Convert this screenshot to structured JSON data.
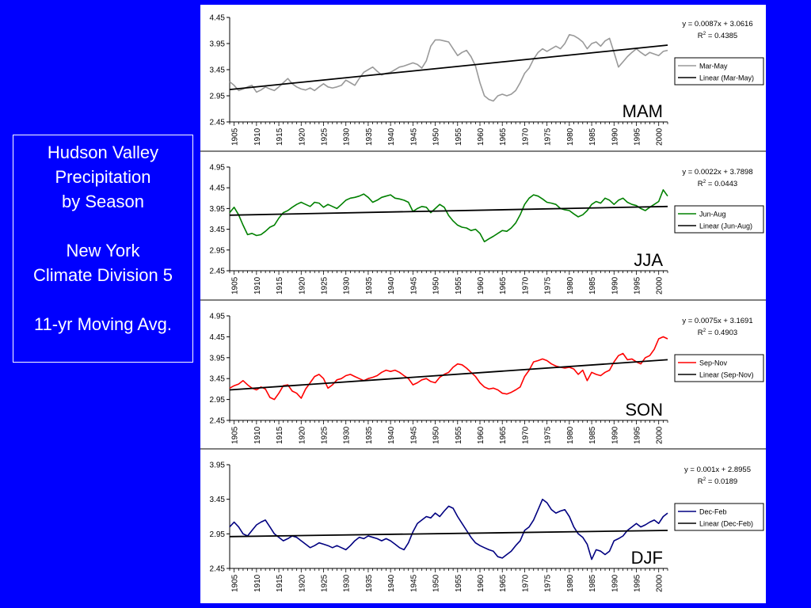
{
  "slide": {
    "title_lines": [
      "Hudson Valley",
      "Precipitation",
      "by Season",
      "",
      "New York",
      "Climate Division 5",
      "",
      "11-yr Moving Avg."
    ]
  },
  "chart_data": [
    {
      "type": "line",
      "panel_label": "MAM",
      "equation": "y = 0.0087x + 3.0616",
      "r2": "R2 = 0.4385",
      "r2_value": "0.4385",
      "ylim": [
        2.45,
        4.45
      ],
      "yticks": [
        "2.45",
        "2.95",
        "3.45",
        "3.95",
        "4.45"
      ],
      "xlim": [
        1904,
        2002
      ],
      "xticks": [
        "1905",
        "1910",
        "1915",
        "1920",
        "1925",
        "1930",
        "1935",
        "1940",
        "1945",
        "1950",
        "1955",
        "1960",
        "1965",
        "1970",
        "1975",
        "1980",
        "1985",
        "1990",
        "1995",
        "2000"
      ],
      "series": [
        {
          "name": "Mar-May",
          "color": "#999999",
          "x": [
            1904,
            1905,
            1906,
            1907,
            1908,
            1909,
            1910,
            1911,
            1912,
            1913,
            1914,
            1915,
            1916,
            1917,
            1918,
            1919,
            1920,
            1921,
            1922,
            1923,
            1924,
            1925,
            1926,
            1927,
            1928,
            1929,
            1930,
            1931,
            1932,
            1933,
            1934,
            1935,
            1936,
            1937,
            1938,
            1939,
            1940,
            1941,
            1942,
            1943,
            1944,
            1945,
            1946,
            1947,
            1948,
            1949,
            1950,
            1951,
            1952,
            1953,
            1954,
            1955,
            1956,
            1957,
            1958,
            1959,
            1960,
            1961,
            1962,
            1963,
            1964,
            1965,
            1966,
            1967,
            1968,
            1969,
            1970,
            1971,
            1972,
            1973,
            1974,
            1975,
            1976,
            1977,
            1978,
            1979,
            1980,
            1981,
            1982,
            1983,
            1984,
            1985,
            1986,
            1987,
            1988,
            1989,
            1990,
            1991,
            1992,
            1993,
            1994,
            1995,
            1996,
            1997,
            1998,
            1999,
            2000,
            2001,
            2002
          ],
          "values": [
            3.22,
            3.15,
            3.05,
            3.08,
            3.12,
            3.15,
            3.02,
            3.06,
            3.12,
            3.08,
            3.05,
            3.12,
            3.2,
            3.28,
            3.18,
            3.12,
            3.08,
            3.06,
            3.1,
            3.05,
            3.12,
            3.18,
            3.12,
            3.1,
            3.12,
            3.15,
            3.25,
            3.2,
            3.15,
            3.28,
            3.4,
            3.45,
            3.5,
            3.42,
            3.35,
            3.38,
            3.4,
            3.45,
            3.5,
            3.52,
            3.55,
            3.58,
            3.55,
            3.48,
            3.62,
            3.9,
            4.02,
            4.02,
            4.0,
            3.98,
            3.85,
            3.72,
            3.78,
            3.82,
            3.7,
            3.52,
            3.2,
            2.95,
            2.88,
            2.85,
            2.95,
            2.98,
            2.95,
            2.98,
            3.05,
            3.2,
            3.38,
            3.48,
            3.65,
            3.78,
            3.85,
            3.8,
            3.85,
            3.9,
            3.85,
            3.95,
            4.12,
            4.1,
            4.05,
            3.98,
            3.85,
            3.95,
            3.98,
            3.9,
            4.0,
            4.05,
            3.78,
            3.5,
            3.6,
            3.7,
            3.78,
            3.85,
            3.78,
            3.72,
            3.78,
            3.75,
            3.72,
            3.8,
            3.82
          ]
        },
        {
          "name": "Linear (Mar-May)",
          "color": "#000000",
          "x": [
            1904,
            2002
          ],
          "values": [
            3.07,
            3.92
          ]
        }
      ]
    },
    {
      "type": "line",
      "panel_label": "JJA",
      "equation": "y = 0.0022x + 3.7898",
      "r2": "R2 = 0.0443",
      "r2_value": "0.0443",
      "ylim": [
        2.45,
        4.95
      ],
      "yticks": [
        "2.45",
        "2.95",
        "3.45",
        "3.95",
        "4.45",
        "4.95"
      ],
      "xlim": [
        1904,
        2002
      ],
      "xticks": [
        "1905",
        "1910",
        "1915",
        "1920",
        "1925",
        "1930",
        "1935",
        "1940",
        "1945",
        "1950",
        "1955",
        "1960",
        "1965",
        "1970",
        "1975",
        "1980",
        "1985",
        "1990",
        "1995",
        "2000"
      ],
      "series": [
        {
          "name": "Jun-Aug",
          "color": "#008000",
          "x": [
            1904,
            1905,
            1906,
            1907,
            1908,
            1909,
            1910,
            1911,
            1912,
            1913,
            1914,
            1915,
            1916,
            1917,
            1918,
            1919,
            1920,
            1921,
            1922,
            1923,
            1924,
            1925,
            1926,
            1927,
            1928,
            1929,
            1930,
            1931,
            1932,
            1933,
            1934,
            1935,
            1936,
            1937,
            1938,
            1939,
            1940,
            1941,
            1942,
            1943,
            1944,
            1945,
            1946,
            1947,
            1948,
            1949,
            1950,
            1951,
            1952,
            1953,
            1954,
            1955,
            1956,
            1957,
            1958,
            1959,
            1960,
            1961,
            1962,
            1963,
            1964,
            1965,
            1966,
            1967,
            1968,
            1969,
            1970,
            1971,
            1972,
            1973,
            1974,
            1975,
            1976,
            1977,
            1978,
            1979,
            1980,
            1981,
            1982,
            1983,
            1984,
            1985,
            1986,
            1987,
            1988,
            1989,
            1990,
            1991,
            1992,
            1993,
            1994,
            1995,
            1996,
            1997,
            1998,
            1999,
            2000,
            2001,
            2002
          ],
          "values": [
            3.85,
            3.98,
            3.8,
            3.55,
            3.32,
            3.35,
            3.3,
            3.32,
            3.4,
            3.5,
            3.55,
            3.72,
            3.85,
            3.9,
            3.98,
            4.05,
            4.1,
            4.05,
            4.0,
            4.1,
            4.08,
            3.98,
            4.05,
            4.0,
            3.95,
            4.05,
            4.15,
            4.2,
            4.22,
            4.25,
            4.3,
            4.22,
            4.1,
            4.15,
            4.22,
            4.25,
            4.28,
            4.2,
            4.18,
            4.15,
            4.1,
            3.88,
            3.95,
            4.0,
            3.98,
            3.85,
            3.95,
            4.05,
            3.98,
            3.78,
            3.65,
            3.55,
            3.5,
            3.48,
            3.42,
            3.45,
            3.35,
            3.15,
            3.22,
            3.28,
            3.35,
            3.42,
            3.4,
            3.48,
            3.6,
            3.8,
            4.05,
            4.2,
            4.28,
            4.25,
            4.18,
            4.1,
            4.08,
            4.05,
            3.95,
            3.92,
            3.9,
            3.82,
            3.75,
            3.8,
            3.9,
            4.05,
            4.12,
            4.08,
            4.2,
            4.15,
            4.05,
            4.15,
            4.2,
            4.1,
            4.05,
            4.02,
            3.95,
            3.9,
            3.98,
            4.05,
            4.12,
            4.4,
            4.25
          ]
        },
        {
          "name": "Linear (Jun-Aug)",
          "color": "#000000",
          "x": [
            1904,
            2002
          ],
          "values": [
            3.79,
            4.0
          ]
        }
      ]
    },
    {
      "type": "line",
      "panel_label": "SON",
      "equation": "y = 0.0075x + 3.1691",
      "r2": "R2 = 0.4903",
      "r2_value": "0.4903",
      "ylim": [
        2.45,
        4.95
      ],
      "yticks": [
        "2.45",
        "2.95",
        "3.45",
        "3.95",
        "4.45",
        "4.95"
      ],
      "xlim": [
        1904,
        2002
      ],
      "xticks": [
        "1905",
        "1910",
        "1915",
        "1920",
        "1925",
        "1930",
        "1935",
        "1940",
        "1945",
        "1950",
        "1955",
        "1960",
        "1965",
        "1970",
        "1975",
        "1980",
        "1985",
        "1990",
        "1995",
        "2000"
      ],
      "series": [
        {
          "name": "Sep-Nov",
          "color": "#ff0000",
          "x": [
            1904,
            1905,
            1906,
            1907,
            1908,
            1909,
            1910,
            1911,
            1912,
            1913,
            1914,
            1915,
            1916,
            1917,
            1918,
            1919,
            1920,
            1921,
            1922,
            1923,
            1924,
            1925,
            1926,
            1927,
            1928,
            1929,
            1930,
            1931,
            1932,
            1933,
            1934,
            1935,
            1936,
            1937,
            1938,
            1939,
            1940,
            1941,
            1942,
            1943,
            1944,
            1945,
            1946,
            1947,
            1948,
            1949,
            1950,
            1951,
            1952,
            1953,
            1954,
            1955,
            1956,
            1957,
            1958,
            1959,
            1960,
            1961,
            1962,
            1963,
            1964,
            1965,
            1966,
            1967,
            1968,
            1969,
            1970,
            1971,
            1972,
            1973,
            1974,
            1975,
            1976,
            1977,
            1978,
            1979,
            1980,
            1981,
            1982,
            1983,
            1984,
            1985,
            1986,
            1987,
            1988,
            1989,
            1990,
            1991,
            1992,
            1993,
            1994,
            1995,
            1996,
            1997,
            1998,
            1999,
            2000,
            2001,
            2002
          ],
          "values": [
            3.22,
            3.28,
            3.32,
            3.4,
            3.3,
            3.22,
            3.18,
            3.25,
            3.2,
            3.0,
            2.95,
            3.1,
            3.28,
            3.3,
            3.15,
            3.1,
            2.98,
            3.2,
            3.35,
            3.5,
            3.55,
            3.45,
            3.22,
            3.3,
            3.42,
            3.45,
            3.52,
            3.55,
            3.5,
            3.45,
            3.4,
            3.45,
            3.48,
            3.52,
            3.6,
            3.65,
            3.62,
            3.65,
            3.6,
            3.52,
            3.45,
            3.3,
            3.35,
            3.42,
            3.45,
            3.38,
            3.35,
            3.48,
            3.55,
            3.6,
            3.72,
            3.8,
            3.78,
            3.7,
            3.6,
            3.5,
            3.35,
            3.25,
            3.2,
            3.22,
            3.18,
            3.1,
            3.08,
            3.12,
            3.18,
            3.25,
            3.5,
            3.65,
            3.85,
            3.88,
            3.92,
            3.88,
            3.8,
            3.75,
            3.72,
            3.7,
            3.72,
            3.68,
            3.55,
            3.65,
            3.4,
            3.6,
            3.55,
            3.52,
            3.6,
            3.65,
            3.85,
            4.0,
            4.05,
            3.9,
            3.92,
            3.85,
            3.8,
            3.95,
            4.0,
            4.15,
            4.4,
            4.45,
            4.4
          ]
        },
        {
          "name": "Linear (Sep-Nov)",
          "color": "#000000",
          "x": [
            1904,
            2002
          ],
          "values": [
            3.18,
            3.9
          ]
        }
      ]
    },
    {
      "type": "line",
      "panel_label": "DJF",
      "equation": "y = 0.001x + 2.8955",
      "r2": "R2 = 0.0189",
      "r2_value": "0.0189",
      "ylim": [
        2.45,
        3.95
      ],
      "yticks": [
        "2.45",
        "2.95",
        "3.45",
        "3.95"
      ],
      "xlim": [
        1904,
        2002
      ],
      "xticks": [
        "1905",
        "1910",
        "1915",
        "1920",
        "1925",
        "1930",
        "1935",
        "1940",
        "1945",
        "1950",
        "1955",
        "1960",
        "1965",
        "1970",
        "1975",
        "1980",
        "1985",
        "1990",
        "1995",
        "2000"
      ],
      "series": [
        {
          "name": "Dec-Feb",
          "color": "#000080",
          "x": [
            1904,
            1905,
            1906,
            1907,
            1908,
            1909,
            1910,
            1911,
            1912,
            1913,
            1914,
            1915,
            1916,
            1917,
            1918,
            1919,
            1920,
            1921,
            1922,
            1923,
            1924,
            1925,
            1926,
            1927,
            1928,
            1929,
            1930,
            1931,
            1932,
            1933,
            1934,
            1935,
            1936,
            1937,
            1938,
            1939,
            1940,
            1941,
            1942,
            1943,
            1944,
            1945,
            1946,
            1947,
            1948,
            1949,
            1950,
            1951,
            1952,
            1953,
            1954,
            1955,
            1956,
            1957,
            1958,
            1959,
            1960,
            1961,
            1962,
            1963,
            1964,
            1965,
            1966,
            1967,
            1968,
            1969,
            1970,
            1971,
            1972,
            1973,
            1974,
            1975,
            1976,
            1977,
            1978,
            1979,
            1980,
            1981,
            1982,
            1983,
            1984,
            1985,
            1986,
            1987,
            1988,
            1989,
            1990,
            1991,
            1992,
            1993,
            1994,
            1995,
            1996,
            1997,
            1998,
            1999,
            2000,
            2001,
            2002
          ],
          "values": [
            3.05,
            3.12,
            3.05,
            2.95,
            2.92,
            3.0,
            3.08,
            3.12,
            3.15,
            3.05,
            2.95,
            2.9,
            2.85,
            2.88,
            2.92,
            2.9,
            2.85,
            2.8,
            2.75,
            2.78,
            2.82,
            2.8,
            2.78,
            2.75,
            2.78,
            2.75,
            2.72,
            2.78,
            2.85,
            2.9,
            2.88,
            2.92,
            2.9,
            2.88,
            2.85,
            2.88,
            2.85,
            2.8,
            2.75,
            2.72,
            2.82,
            2.98,
            3.1,
            3.15,
            3.2,
            3.18,
            3.25,
            3.2,
            3.28,
            3.35,
            3.32,
            3.2,
            3.1,
            3.0,
            2.9,
            2.82,
            2.78,
            2.75,
            2.72,
            2.7,
            2.62,
            2.6,
            2.65,
            2.7,
            2.78,
            2.85,
            3.0,
            3.05,
            3.15,
            3.3,
            3.45,
            3.4,
            3.3,
            3.25,
            3.28,
            3.3,
            3.2,
            3.05,
            2.95,
            2.9,
            2.8,
            2.58,
            2.72,
            2.7,
            2.65,
            2.7,
            2.85,
            2.88,
            2.92,
            3.0,
            3.05,
            3.1,
            3.05,
            3.08,
            3.12,
            3.15,
            3.1,
            3.2,
            3.25
          ]
        },
        {
          "name": "Linear (Dec-Feb)",
          "color": "#000000",
          "x": [
            1904,
            2002
          ],
          "values": [
            2.91,
            3.0
          ]
        }
      ]
    }
  ]
}
